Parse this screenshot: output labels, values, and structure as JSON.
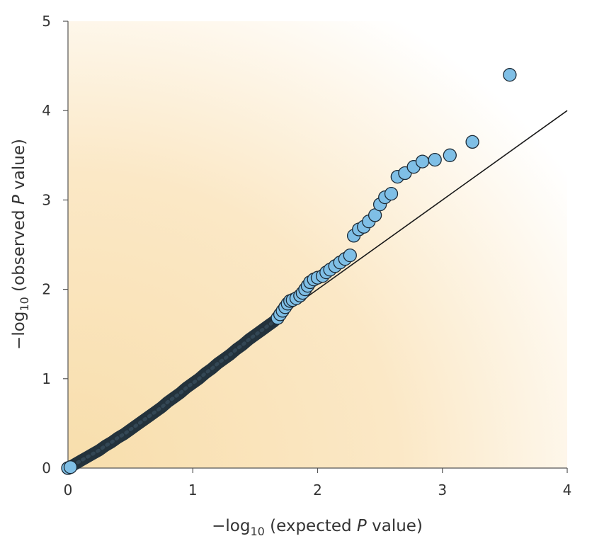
{
  "chart_data": {
    "type": "scatter",
    "title": "",
    "xlabel": {
      "prefix": "−log",
      "sub": "10",
      "suffix_open": " (expected ",
      "italic": "P",
      "suffix_close": " value)"
    },
    "ylabel": {
      "prefix": "−log",
      "sub": "10",
      "suffix_open": " (observed ",
      "italic": "P",
      "suffix_close": " value)"
    },
    "xlim": [
      0,
      4
    ],
    "ylim": [
      0,
      5
    ],
    "x_ticks": [
      "0",
      "1",
      "2",
      "3",
      "4"
    ],
    "y_ticks": [
      "0",
      "1",
      "2",
      "3",
      "4",
      "5"
    ],
    "reference_line": {
      "from": [
        0,
        0
      ],
      "to": [
        4,
        4
      ]
    },
    "grid": false,
    "background_color": "#f8deac",
    "point_fill": "#7fbfe6",
    "point_stroke": "#1c2a36",
    "dense_trail_color": "#23323c",
    "points": [
      [
        0.0,
        0.0
      ],
      [
        0.02,
        0.01
      ],
      [
        0.05,
        0.04
      ],
      [
        0.1,
        0.08
      ],
      [
        0.15,
        0.12
      ],
      [
        0.2,
        0.16
      ],
      [
        0.25,
        0.2
      ],
      [
        0.3,
        0.25
      ],
      [
        0.35,
        0.29
      ],
      [
        0.4,
        0.34
      ],
      [
        0.45,
        0.38
      ],
      [
        0.5,
        0.43
      ],
      [
        0.55,
        0.48
      ],
      [
        0.6,
        0.53
      ],
      [
        0.65,
        0.58
      ],
      [
        0.7,
        0.63
      ],
      [
        0.75,
        0.68
      ],
      [
        0.8,
        0.74
      ],
      [
        0.85,
        0.79
      ],
      [
        0.9,
        0.84
      ],
      [
        0.95,
        0.9
      ],
      [
        1.0,
        0.95
      ],
      [
        1.05,
        1.0
      ],
      [
        1.1,
        1.06
      ],
      [
        1.15,
        1.11
      ],
      [
        1.2,
        1.17
      ],
      [
        1.25,
        1.22
      ],
      [
        1.3,
        1.27
      ],
      [
        1.35,
        1.33
      ],
      [
        1.4,
        1.38
      ],
      [
        1.45,
        1.44
      ],
      [
        1.5,
        1.49
      ],
      [
        1.55,
        1.54
      ],
      [
        1.6,
        1.59
      ],
      [
        1.65,
        1.64
      ],
      [
        1.68,
        1.68
      ],
      [
        1.7,
        1.72
      ],
      [
        1.72,
        1.76
      ],
      [
        1.74,
        1.8
      ],
      [
        1.76,
        1.84
      ],
      [
        1.78,
        1.87
      ],
      [
        1.8,
        1.88
      ],
      [
        1.83,
        1.9
      ],
      [
        1.86,
        1.93
      ],
      [
        1.88,
        1.96
      ],
      [
        1.9,
        2.0
      ],
      [
        1.92,
        2.04
      ],
      [
        1.94,
        2.08
      ],
      [
        1.97,
        2.11
      ],
      [
        2.0,
        2.13
      ],
      [
        2.04,
        2.15
      ],
      [
        2.07,
        2.19
      ],
      [
        2.1,
        2.22
      ],
      [
        2.14,
        2.26
      ],
      [
        2.18,
        2.3
      ],
      [
        2.22,
        2.34
      ],
      [
        2.26,
        2.38
      ],
      [
        2.29,
        2.6
      ],
      [
        2.33,
        2.67
      ],
      [
        2.37,
        2.7
      ],
      [
        2.41,
        2.76
      ],
      [
        2.46,
        2.83
      ],
      [
        2.5,
        2.95
      ],
      [
        2.54,
        3.03
      ],
      [
        2.59,
        3.07
      ],
      [
        2.64,
        3.26
      ],
      [
        2.7,
        3.3
      ],
      [
        2.77,
        3.37
      ],
      [
        2.84,
        3.43
      ],
      [
        2.94,
        3.45
      ],
      [
        3.06,
        3.5
      ],
      [
        3.24,
        3.65
      ],
      [
        3.54,
        4.4
      ]
    ]
  }
}
